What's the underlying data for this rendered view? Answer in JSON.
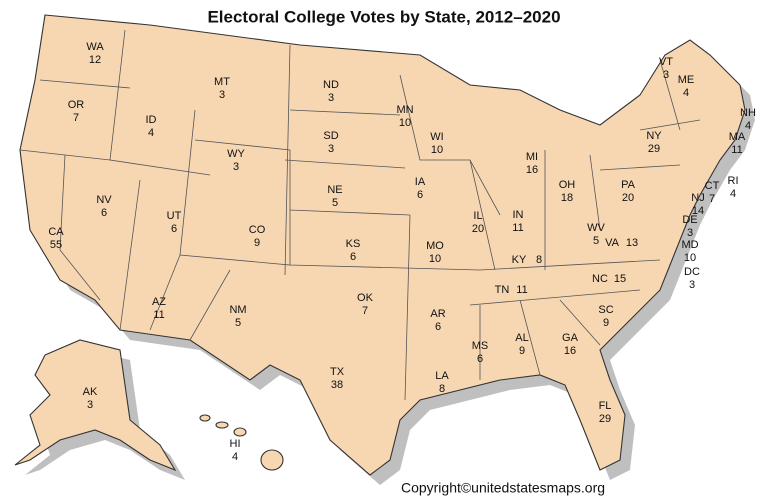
{
  "title": "Electoral College Votes by State, 2012–2020",
  "states": [
    {
      "abbr": "WA",
      "votes": 12
    },
    {
      "abbr": "OR",
      "votes": 7
    },
    {
      "abbr": "ID",
      "votes": 4
    },
    {
      "abbr": "MT",
      "votes": 3
    },
    {
      "abbr": "ND",
      "votes": 3
    },
    {
      "abbr": "SD",
      "votes": 3
    },
    {
      "abbr": "WY",
      "votes": 3
    },
    {
      "abbr": "NE",
      "votes": 5
    },
    {
      "abbr": "MN",
      "votes": 10
    },
    {
      "abbr": "WI",
      "votes": 10
    },
    {
      "abbr": "MI",
      "votes": 16
    },
    {
      "abbr": "IA",
      "votes": 6
    },
    {
      "abbr": "IL",
      "votes": 20
    },
    {
      "abbr": "IN",
      "votes": 11
    },
    {
      "abbr": "OH",
      "votes": 18
    },
    {
      "abbr": "PA",
      "votes": 20
    },
    {
      "abbr": "NY",
      "votes": 29
    },
    {
      "abbr": "VT",
      "votes": 3
    },
    {
      "abbr": "ME",
      "votes": 4
    },
    {
      "abbr": "NH",
      "votes": 4
    },
    {
      "abbr": "MA",
      "votes": 11
    },
    {
      "abbr": "RI",
      "votes": 4
    },
    {
      "abbr": "CT",
      "votes": 7
    },
    {
      "abbr": "NJ",
      "votes": 14
    },
    {
      "abbr": "DE",
      "votes": 3
    },
    {
      "abbr": "MD",
      "votes": 10
    },
    {
      "abbr": "DC",
      "votes": 3
    },
    {
      "abbr": "VA",
      "votes": 13
    },
    {
      "abbr": "WV",
      "votes": 5
    },
    {
      "abbr": "KY",
      "votes": 8
    },
    {
      "abbr": "TN",
      "votes": 11
    },
    {
      "abbr": "NC",
      "votes": 15
    },
    {
      "abbr": "SC",
      "votes": 9
    },
    {
      "abbr": "GA",
      "votes": 16
    },
    {
      "abbr": "FL",
      "votes": 29
    },
    {
      "abbr": "AL",
      "votes": 9
    },
    {
      "abbr": "MS",
      "votes": 6
    },
    {
      "abbr": "LA",
      "votes": 8
    },
    {
      "abbr": "AR",
      "votes": 6
    },
    {
      "abbr": "MO",
      "votes": 10
    },
    {
      "abbr": "KS",
      "votes": 6
    },
    {
      "abbr": "OK",
      "votes": 7
    },
    {
      "abbr": "TX",
      "votes": 38
    },
    {
      "abbr": "NM",
      "votes": 5
    },
    {
      "abbr": "AZ",
      "votes": 11
    },
    {
      "abbr": "CO",
      "votes": 9
    },
    {
      "abbr": "UT",
      "votes": 6
    },
    {
      "abbr": "NV",
      "votes": 6
    },
    {
      "abbr": "CA",
      "votes": 55
    },
    {
      "abbr": "AK",
      "votes": 3
    },
    {
      "abbr": "HI",
      "votes": 4
    }
  ],
  "copyright": "Copyright©unitedstatesmaps.org"
}
